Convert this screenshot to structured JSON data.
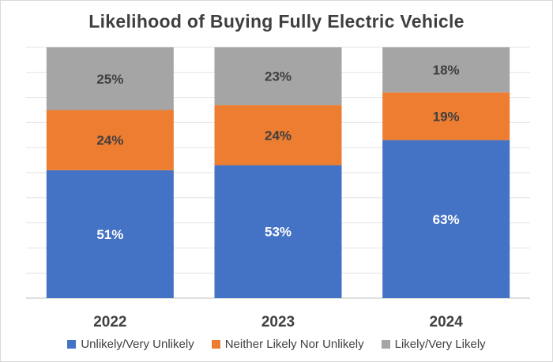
{
  "chart_data": {
    "type": "bar",
    "stacked": true,
    "title": "Likelihood of Buying Fully Electric Vehicle",
    "categories": [
      "2022",
      "2023",
      "2024"
    ],
    "ylim": [
      0,
      100
    ],
    "grid": true,
    "legend_position": "bottom",
    "series": [
      {
        "name": "Unlikely/Very Unlikely",
        "values": [
          51,
          53,
          63
        ],
        "color": "#4472c4",
        "label_color": "#ffffff",
        "labels": [
          "51%",
          "53%",
          "63%"
        ]
      },
      {
        "name": "Neither Likely Nor Unlikely",
        "values": [
          24,
          24,
          19
        ],
        "color": "#ed7d31",
        "label_color": "#3f3f3f",
        "labels": [
          "24%",
          "24%",
          "19%"
        ]
      },
      {
        "name": "Likely/Very Likely",
        "values": [
          25,
          23,
          18
        ],
        "color": "#a5a5a5",
        "label_color": "#3f3f3f",
        "labels": [
          "25%",
          "23%",
          "18%"
        ]
      }
    ]
  }
}
